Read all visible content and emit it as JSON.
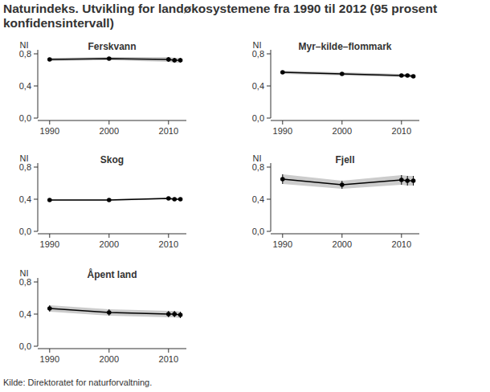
{
  "title": "Naturindeks. Utvikling for landøkosystemene fra 1990 til 2012 (95 prosent konfidensintervall)",
  "source": "Kilde: Direktoratet for naturforvaltning.",
  "chart_data": [
    {
      "type": "line",
      "title": "Ferskvann",
      "y_label": "NI",
      "x": [
        1990,
        2000,
        2010,
        2011,
        2012
      ],
      "series": [
        {
          "color": "#000000",
          "values": [
            0.73,
            0.74,
            0.73,
            0.72,
            0.72
          ],
          "lower": [
            0.71,
            0.72,
            0.7,
            0.69,
            0.69
          ],
          "upper": [
            0.75,
            0.76,
            0.76,
            0.75,
            0.75
          ]
        }
      ],
      "xlim": [
        1988,
        2013
      ],
      "xticks": [
        1990,
        2000,
        2010
      ],
      "ylim": [
        0,
        0.85
      ],
      "yticks": [
        {
          "value": 0,
          "label": "0,0"
        },
        {
          "value": 0.4,
          "label": "0,4"
        },
        {
          "value": 0.8,
          "label": "0,8"
        }
      ]
    },
    {
      "type": "line",
      "title": "Myr–kilde–flommark",
      "y_label": "NI",
      "x": [
        1990,
        2000,
        2010,
        2011,
        2012
      ],
      "series": [
        {
          "color": "#000000",
          "values": [
            0.57,
            0.55,
            0.53,
            0.53,
            0.52
          ],
          "lower": [
            0.55,
            0.53,
            0.51,
            0.51,
            0.5
          ],
          "upper": [
            0.59,
            0.57,
            0.55,
            0.55,
            0.54
          ]
        }
      ],
      "xlim": [
        1988,
        2013
      ],
      "xticks": [
        1990,
        2000,
        2010
      ],
      "ylim": [
        0,
        0.85
      ],
      "yticks": [
        {
          "value": 0,
          "label": "0,0"
        },
        {
          "value": 0.4,
          "label": "0,4"
        },
        {
          "value": 0.8,
          "label": "0,8"
        }
      ]
    },
    {
      "type": "line",
      "title": "Skog",
      "y_label": "NI",
      "x": [
        1990,
        2000,
        2010,
        2011,
        2012
      ],
      "series": [
        {
          "color": "#000000",
          "values": [
            0.39,
            0.39,
            0.41,
            0.4,
            0.4
          ],
          "lower": [
            0.38,
            0.38,
            0.4,
            0.39,
            0.39
          ],
          "upper": [
            0.4,
            0.4,
            0.42,
            0.41,
            0.41
          ]
        }
      ],
      "xlim": [
        1988,
        2013
      ],
      "xticks": [
        1990,
        2000,
        2010
      ],
      "ylim": [
        0,
        0.85
      ],
      "yticks": [
        {
          "value": 0,
          "label": "0,0"
        },
        {
          "value": 0.4,
          "label": "0,4"
        },
        {
          "value": 0.8,
          "label": "0,8"
        }
      ]
    },
    {
      "type": "line",
      "title": "Fjell",
      "y_label": "NI",
      "x": [
        1990,
        2000,
        2010,
        2011,
        2012
      ],
      "series": [
        {
          "color": "#000000",
          "values": [
            0.65,
            0.58,
            0.64,
            0.63,
            0.63
          ],
          "lower": [
            0.59,
            0.53,
            0.58,
            0.57,
            0.57
          ],
          "upper": [
            0.71,
            0.63,
            0.7,
            0.69,
            0.69
          ]
        }
      ],
      "xlim": [
        1988,
        2013
      ],
      "xticks": [
        1990,
        2000,
        2010
      ],
      "ylim": [
        0,
        0.85
      ],
      "yticks": [
        {
          "value": 0,
          "label": "0,0"
        },
        {
          "value": 0.4,
          "label": "0,4"
        },
        {
          "value": 0.8,
          "label": "0,8"
        }
      ]
    },
    {
      "type": "line",
      "title": "Åpent land",
      "y_label": "NI",
      "x": [
        1990,
        2000,
        2010,
        2011,
        2012
      ],
      "series": [
        {
          "color": "#000000",
          "values": [
            0.47,
            0.42,
            0.4,
            0.4,
            0.39
          ],
          "lower": [
            0.43,
            0.38,
            0.36,
            0.36,
            0.35
          ],
          "upper": [
            0.51,
            0.46,
            0.44,
            0.44,
            0.43
          ]
        }
      ],
      "xlim": [
        1988,
        2013
      ],
      "xticks": [
        1990,
        2000,
        2010
      ],
      "ylim": [
        0,
        0.85
      ],
      "yticks": [
        {
          "value": 0,
          "label": "0,0"
        },
        {
          "value": 0.4,
          "label": "0,4"
        },
        {
          "value": 0.8,
          "label": "0,8"
        }
      ]
    }
  ]
}
